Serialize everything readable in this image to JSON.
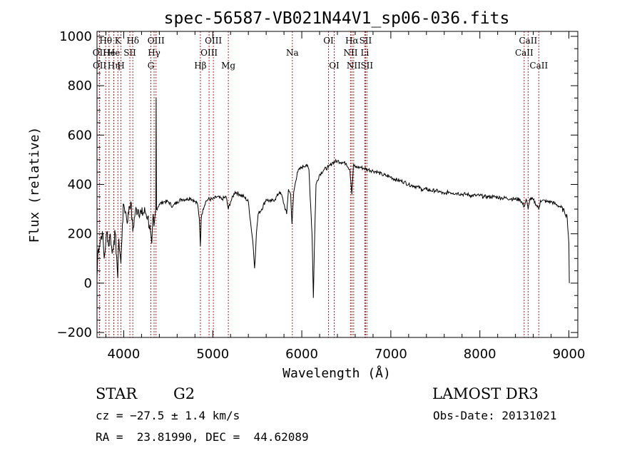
{
  "chart_data": {
    "type": "line",
    "title": "spec-56587-VB021N44V1_sp06-036.fits",
    "xlabel": "Wavelength (Å)",
    "ylabel": "Flux (relative)",
    "xlim": [
      3700,
      9100
    ],
    "ylim": [
      -220,
      1020
    ],
    "xticks": [
      4000,
      5000,
      6000,
      7000,
      8000,
      9000
    ],
    "xtick_labels": [
      "4000",
      "5000",
      "6000",
      "7000",
      "8000",
      "9000"
    ],
    "yticks": [
      -200,
      0,
      200,
      400,
      600,
      800,
      1000
    ],
    "ytick_labels": [
      "−200",
      "0",
      "200",
      "400",
      "600",
      "800",
      "1000"
    ],
    "line_color": "#000000",
    "marker_color": "#b22222",
    "spectrum_anchors": [
      [
        3700,
        20
      ],
      [
        3710,
        130
      ],
      [
        3725,
        150
      ],
      [
        3740,
        180
      ],
      [
        3760,
        210
      ],
      [
        3780,
        100
      ],
      [
        3800,
        170
      ],
      [
        3815,
        210
      ],
      [
        3830,
        150
      ],
      [
        3850,
        200
      ],
      [
        3870,
        120
      ],
      [
        3889,
        170
      ],
      [
        3905,
        200
      ],
      [
        3920,
        110
      ],
      [
        3933,
        20
      ],
      [
        3945,
        180
      ],
      [
        3968,
        80
      ],
      [
        3985,
        240
      ],
      [
        4000,
        320
      ],
      [
        4020,
        290
      ],
      [
        4045,
        250
      ],
      [
        4060,
        310
      ],
      [
        4080,
        330
      ],
      [
        4101,
        210
      ],
      [
        4130,
        290
      ],
      [
        4160,
        300
      ],
      [
        4200,
        280
      ],
      [
        4240,
        290
      ],
      [
        4270,
        270
      ],
      [
        4300,
        210
      ],
      [
        4315,
        160
      ],
      [
        4330,
        280
      ],
      [
        4340,
        230
      ],
      [
        4360,
        300
      ],
      [
        4364,
        750
      ],
      [
        4368,
        300
      ],
      [
        4400,
        320
      ],
      [
        4450,
        330
      ],
      [
        4500,
        330
      ],
      [
        4550,
        310
      ],
      [
        4600,
        330
      ],
      [
        4650,
        340
      ],
      [
        4700,
        340
      ],
      [
        4750,
        345
      ],
      [
        4800,
        330
      ],
      [
        4830,
        320
      ],
      [
        4850,
        260
      ],
      [
        4861,
        150
      ],
      [
        4870,
        260
      ],
      [
        4890,
        300
      ],
      [
        4920,
        330
      ],
      [
        4950,
        340
      ],
      [
        5000,
        340
      ],
      [
        5050,
        350
      ],
      [
        5100,
        340
      ],
      [
        5150,
        350
      ],
      [
        5175,
        300
      ],
      [
        5200,
        330
      ],
      [
        5250,
        370
      ],
      [
        5300,
        360
      ],
      [
        5350,
        350
      ],
      [
        5400,
        330
      ],
      [
        5430,
        230
      ],
      [
        5450,
        170
      ],
      [
        5470,
        60
      ],
      [
        5490,
        200
      ],
      [
        5510,
        280
      ],
      [
        5550,
        300
      ],
      [
        5600,
        340
      ],
      [
        5650,
        330
      ],
      [
        5700,
        340
      ],
      [
        5750,
        370
      ],
      [
        5780,
        350
      ],
      [
        5800,
        320
      ],
      [
        5830,
        280
      ],
      [
        5850,
        380
      ],
      [
        5875,
        360
      ],
      [
        5890,
        240
      ],
      [
        5910,
        370
      ],
      [
        5950,
        450
      ],
      [
        6000,
        470
      ],
      [
        6050,
        480
      ],
      [
        6080,
        460
      ],
      [
        6100,
        310
      ],
      [
        6115,
        200
      ],
      [
        6130,
        -60
      ],
      [
        6145,
        200
      ],
      [
        6160,
        400
      ],
      [
        6200,
        440
      ],
      [
        6250,
        460
      ],
      [
        6300,
        470
      ],
      [
        6350,
        490
      ],
      [
        6400,
        495
      ],
      [
        6450,
        490
      ],
      [
        6500,
        485
      ],
      [
        6540,
        460
      ],
      [
        6563,
        360
      ],
      [
        6580,
        480
      ],
      [
        6600,
        470
      ],
      [
        6650,
        470
      ],
      [
        6700,
        465
      ],
      [
        6750,
        460
      ],
      [
        6800,
        455
      ],
      [
        6850,
        450
      ],
      [
        6900,
        440
      ],
      [
        6950,
        435
      ],
      [
        7000,
        430
      ],
      [
        7050,
        420
      ],
      [
        7100,
        415
      ],
      [
        7150,
        410
      ],
      [
        7200,
        400
      ],
      [
        7250,
        395
      ],
      [
        7300,
        390
      ],
      [
        7350,
        380
      ],
      [
        7400,
        380
      ],
      [
        7450,
        375
      ],
      [
        7500,
        375
      ],
      [
        7550,
        370
      ],
      [
        7600,
        360
      ],
      [
        7650,
        370
      ],
      [
        7700,
        365
      ],
      [
        7750,
        365
      ],
      [
        7800,
        360
      ],
      [
        7850,
        360
      ],
      [
        7900,
        355
      ],
      [
        7950,
        355
      ],
      [
        8000,
        355
      ],
      [
        8050,
        350
      ],
      [
        8100,
        350
      ],
      [
        8150,
        350
      ],
      [
        8200,
        348
      ],
      [
        8250,
        345
      ],
      [
        8300,
        345
      ],
      [
        8350,
        342
      ],
      [
        8400,
        340
      ],
      [
        8450,
        340
      ],
      [
        8498,
        310
      ],
      [
        8520,
        340
      ],
      [
        8542,
        300
      ],
      [
        8560,
        340
      ],
      [
        8600,
        338
      ],
      [
        8662,
        300
      ],
      [
        8680,
        335
      ],
      [
        8700,
        335
      ],
      [
        8750,
        330
      ],
      [
        8800,
        330
      ],
      [
        8850,
        320
      ],
      [
        8900,
        310
      ],
      [
        8950,
        290
      ],
      [
        8980,
        270
      ],
      [
        9000,
        160
      ],
      [
        9005,
        0
      ]
    ],
    "lines": [
      {
        "label": "Hθ",
        "wavelength": 3798,
        "row": 0
      },
      {
        "label": "OII",
        "wavelength": 3727,
        "row": 1
      },
      {
        "label": "OII",
        "wavelength": 3729,
        "row": 2
      },
      {
        "label": "He",
        "wavelength": 3835,
        "row": 1
      },
      {
        "label": "Hη",
        "wavelength": 3889,
        "row": 2
      },
      {
        "label": "K",
        "wavelength": 3934,
        "row": 0
      },
      {
        "label": "H",
        "wavelength": 3969,
        "row": 2
      },
      {
        "label": "He",
        "wavelength": 3889,
        "row": 1
      },
      {
        "label": "SII",
        "wavelength": 4069,
        "row": 1
      },
      {
        "label": "Hδ",
        "wavelength": 4102,
        "row": 0
      },
      {
        "label": "G",
        "wavelength": 4305,
        "row": 2
      },
      {
        "label": "Hγ",
        "wavelength": 4341,
        "row": 1
      },
      {
        "label": "OIII",
        "wavelength": 4363,
        "row": 0
      },
      {
        "label": "Hβ",
        "wavelength": 4861,
        "row": 2
      },
      {
        "label": "OIII",
        "wavelength": 4959,
        "row": 1
      },
      {
        "label": "OIII",
        "wavelength": 5007,
        "row": 0
      },
      {
        "label": "Mg",
        "wavelength": 5175,
        "row": 2
      },
      {
        "label": "Na",
        "wavelength": 5894,
        "row": 1
      },
      {
        "label": "OI",
        "wavelength": 6300,
        "row": 0
      },
      {
        "label": "OI",
        "wavelength": 6364,
        "row": 2
      },
      {
        "label": "NII",
        "wavelength": 6548,
        "row": 1
      },
      {
        "label": "Hα",
        "wavelength": 6563,
        "row": 0
      },
      {
        "label": "NII",
        "wavelength": 6583,
        "row": 2
      },
      {
        "label": "Li",
        "wavelength": 6708,
        "row": 1
      },
      {
        "label": "SII",
        "wavelength": 6716,
        "row": 0
      },
      {
        "label": "SII",
        "wavelength": 6731,
        "row": 2
      },
      {
        "label": "CaII",
        "wavelength": 8498,
        "row": 1
      },
      {
        "label": "CaII",
        "wavelength": 8542,
        "row": 0
      },
      {
        "label": "CaII",
        "wavelength": 8662,
        "row": 2
      }
    ]
  },
  "info": {
    "class_label": "STAR",
    "subclass": "G2",
    "cz": "cz = −27.5 ± 1.4 km/s",
    "coords": "RA =  23.81990, DEC =  44.62089",
    "survey": "LAMOST DR3",
    "obs_date": "Obs-Date: 20131021"
  }
}
